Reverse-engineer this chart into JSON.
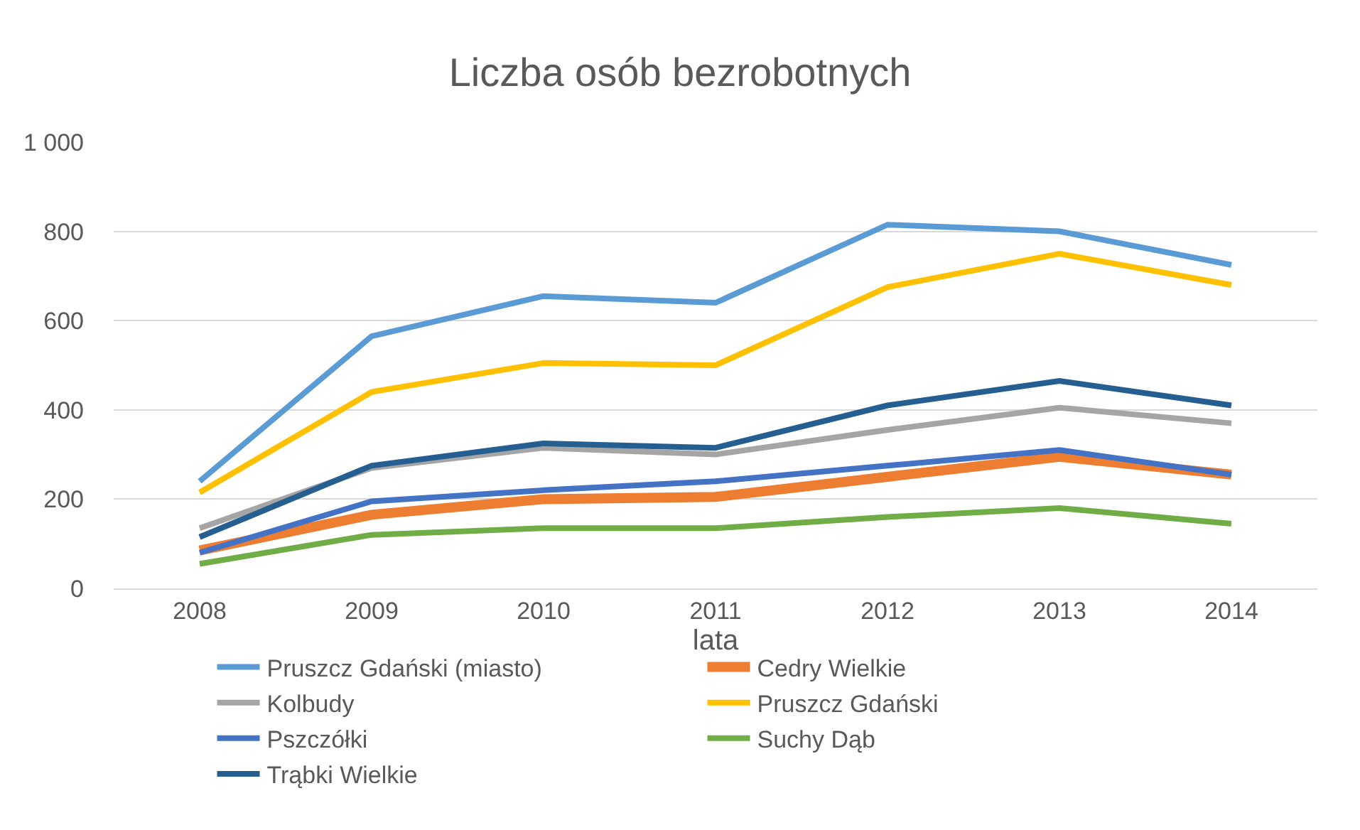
{
  "chart_data": {
    "type": "line",
    "title": "Liczba osób bezrobotnych",
    "xlabel": "lata",
    "categories": [
      "2008",
      "2009",
      "2010",
      "2011",
      "2012",
      "2013",
      "2014"
    ],
    "series": [
      {
        "name": "Pruszcz Gdański (miasto)",
        "color": "#5b9bd5",
        "values": [
          240,
          565,
          655,
          640,
          815,
          800,
          725
        ]
      },
      {
        "name": "Cedry Wielkie",
        "color": "#ed7d31",
        "values": [
          85,
          165,
          200,
          205,
          250,
          295,
          255
        ]
      },
      {
        "name": "Kolbudy",
        "color": "#a5a5a5",
        "values": [
          135,
          270,
          315,
          300,
          355,
          405,
          370
        ]
      },
      {
        "name": "Pruszcz Gdański",
        "color": "#ffc000",
        "values": [
          215,
          440,
          505,
          500,
          675,
          750,
          680
        ]
      },
      {
        "name": "Pszczółki",
        "color": "#4472c4",
        "values": [
          80,
          195,
          220,
          240,
          275,
          310,
          255
        ]
      },
      {
        "name": "Suchy Dąb",
        "color": "#70ad47",
        "values": [
          55,
          120,
          135,
          135,
          160,
          180,
          145
        ]
      },
      {
        "name": "Trąbki Wielkie",
        "color": "#255e91",
        "values": [
          115,
          275,
          325,
          315,
          410,
          465,
          410
        ]
      }
    ],
    "ylim": [
      0,
      1000
    ],
    "yticks": [
      0,
      200,
      400,
      600,
      800,
      {
        "value": 1000,
        "label": "1 000"
      }
    ],
    "grid": "y",
    "legend": "bottom",
    "marker": "none",
    "line_style": "solid"
  }
}
